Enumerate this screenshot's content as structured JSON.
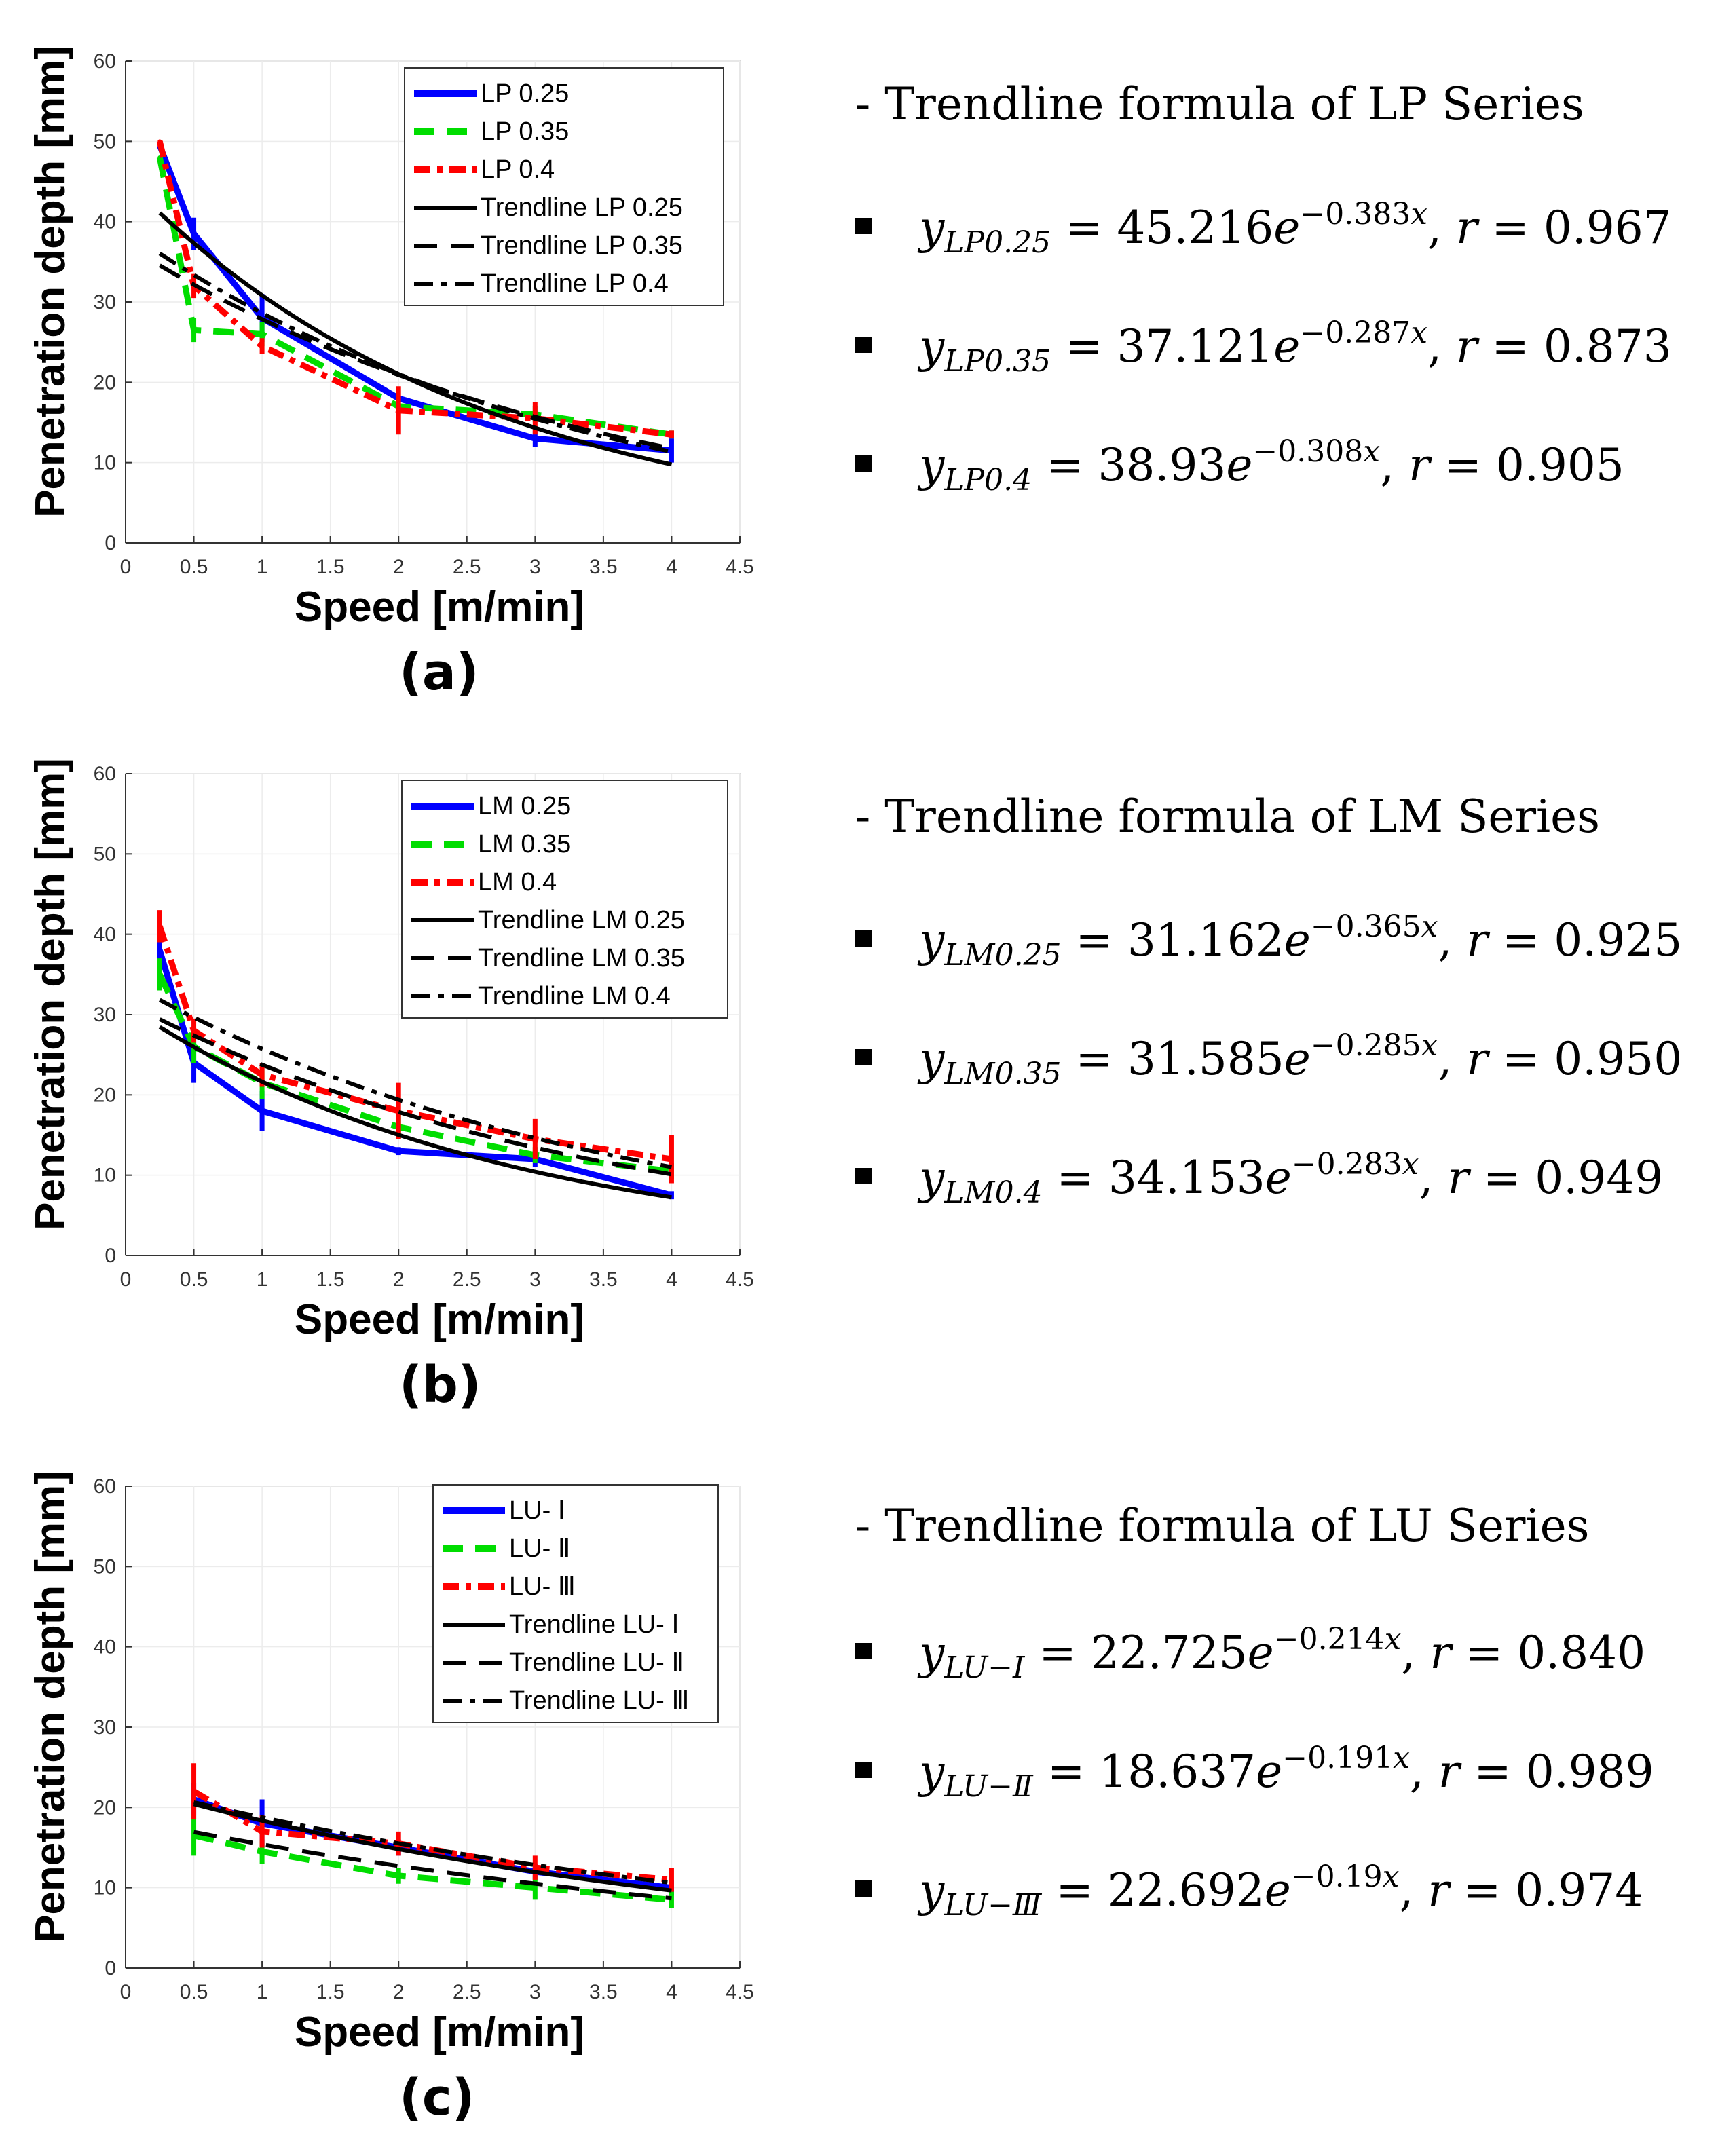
{
  "panels": [
    {
      "id": "a",
      "caption": "(a)",
      "heading": "- Trendline formula of LP Series",
      "formulas": [
        {
          "sub": "LP0.25",
          "coef": "45.216",
          "exp": "−0.383",
          "r": "0.967"
        },
        {
          "sub": "LP0.35",
          "coef": "37.121",
          "exp": "−0.287",
          "r": "0.873"
        },
        {
          "sub": "LP0.4",
          "coef": "38.93",
          "exp": "−0.308",
          "r": "0.905"
        }
      ]
    },
    {
      "id": "b",
      "caption": "(b)",
      "heading": "- Trendline formula of LM Series",
      "formulas": [
        {
          "sub": "LM0.25",
          "coef": "31.162",
          "exp": "−0.365",
          "r": "0.925"
        },
        {
          "sub": "LM0.35",
          "coef": "31.585",
          "exp": "−0.285",
          "r": "0.950"
        },
        {
          "sub": "LM0.4",
          "coef": "34.153",
          "exp": "−0.283",
          "r": "0.949"
        }
      ]
    },
    {
      "id": "c",
      "caption": "(c)",
      "heading": "- Trendline formula of LU Series",
      "formulas": [
        {
          "sub": "LU−Ⅰ",
          "coef": "22.725",
          "exp": "−0.214",
          "r": "0.840"
        },
        {
          "sub": "LU−Ⅱ",
          "coef": "18.637",
          "exp": "−0.191",
          "r": "0.989"
        },
        {
          "sub": "LU−Ⅲ",
          "coef": "22.692",
          "exp": "−0.19",
          "r": "0.974"
        }
      ]
    }
  ],
  "colors": {
    "blue": "#0000ff",
    "green": "#00dd00",
    "red": "#ff0000",
    "black": "#000000"
  },
  "chart_data": [
    {
      "type": "line",
      "title": "",
      "xlabel": "Speed [m/min]",
      "ylabel": "Penetration depth [mm]",
      "xlim": [
        0,
        4.5
      ],
      "ylim": [
        0,
        60
      ],
      "xticks": [
        "0",
        "0.5",
        "1",
        "1.5",
        "2",
        "2.5",
        "3",
        "3.5",
        "4",
        "4.5"
      ],
      "yticks": [
        "0",
        "10",
        "20",
        "30",
        "40",
        "50",
        "60"
      ],
      "legend_position": "top-right",
      "series": [
        {
          "name": "LP 0.25",
          "style": "measured",
          "color": "blue",
          "x": [
            0.25,
            0.5,
            1,
            2,
            3,
            4
          ],
          "y": [
            49.5,
            38.5,
            28,
            18,
            13,
            11.5
          ],
          "err": [
            0,
            2,
            3,
            0,
            1,
            1.5
          ]
        },
        {
          "name": "LP 0.35",
          "style": "measured",
          "color": "green",
          "x": [
            0.25,
            0.5,
            1,
            2,
            3,
            4
          ],
          "y": [
            48,
            26.5,
            26,
            17,
            16,
            13.5
          ],
          "err": [
            0,
            1.5,
            1.5,
            0,
            1,
            0.5
          ]
        },
        {
          "name": "LP 0.4",
          "style": "measured",
          "color": "red",
          "x": [
            0.25,
            0.5,
            1,
            2,
            3,
            4
          ],
          "y": [
            50,
            32,
            24.5,
            16.5,
            15.5,
            13.5
          ],
          "err": [
            0,
            1.5,
            1,
            3,
            2,
            0.5
          ]
        },
        {
          "name": "Trendline LP 0.25",
          "style": "solid",
          "color": "black",
          "a": 45.216,
          "b": -0.383
        },
        {
          "name": "Trendline LP 0.35",
          "style": "dashed",
          "color": "black",
          "a": 37.121,
          "b": -0.287
        },
        {
          "name": "Trendline LP 0.4",
          "style": "dashdot",
          "color": "black",
          "a": 38.93,
          "b": -0.308
        }
      ]
    },
    {
      "type": "line",
      "title": "",
      "xlabel": "Speed [m/min]",
      "ylabel": "Penetration depth [mm]",
      "xlim": [
        0,
        4.5
      ],
      "ylim": [
        0,
        60
      ],
      "xticks": [
        "0",
        "0.5",
        "1",
        "1.5",
        "2",
        "2.5",
        "3",
        "3.5",
        "4",
        "4.5"
      ],
      "yticks": [
        "0",
        "10",
        "20",
        "30",
        "40",
        "50",
        "60"
      ],
      "legend_position": "top-right",
      "series": [
        {
          "name": "LM 0.25",
          "style": "measured",
          "color": "blue",
          "x": [
            0.25,
            0.5,
            1,
            2,
            3,
            4
          ],
          "y": [
            38,
            24,
            18,
            13,
            12,
            7.5
          ],
          "err": [
            2,
            2.5,
            2.5,
            0.5,
            1,
            0.5
          ]
        },
        {
          "name": "LM 0.35",
          "style": "measured",
          "color": "green",
          "x": [
            0.25,
            0.5,
            1,
            2,
            3,
            4
          ],
          "y": [
            35,
            26,
            21.5,
            16,
            12.5,
            10.5
          ],
          "err": [
            2,
            2,
            2,
            1.5,
            1,
            1
          ]
        },
        {
          "name": "LM 0.4",
          "style": "measured",
          "color": "red",
          "x": [
            0.25,
            0.5,
            1,
            2,
            3,
            4
          ],
          "y": [
            41,
            28,
            22.5,
            18,
            14.5,
            12
          ],
          "err": [
            2,
            1.5,
            1.5,
            3.5,
            2.5,
            3
          ]
        },
        {
          "name": "Trendline LM 0.25",
          "style": "solid",
          "color": "black",
          "a": 31.162,
          "b": -0.365
        },
        {
          "name": "Trendline LM 0.35",
          "style": "dashed",
          "color": "black",
          "a": 31.585,
          "b": -0.285
        },
        {
          "name": "Trendline LM 0.4",
          "style": "dashdot",
          "color": "black",
          "a": 34.153,
          "b": -0.283
        }
      ]
    },
    {
      "type": "line",
      "title": "",
      "xlabel": "Speed [m/min]",
      "ylabel": "Penetration depth [mm]",
      "xlim": [
        0,
        4.5
      ],
      "ylim": [
        0,
        60
      ],
      "xticks": [
        "0",
        "0.5",
        "1",
        "1.5",
        "2",
        "2.5",
        "3",
        "3.5",
        "4",
        "4.5"
      ],
      "yticks": [
        "0",
        "10",
        "20",
        "30",
        "40",
        "50",
        "60"
      ],
      "legend_position": "top-right",
      "series": [
        {
          "name": "LU- Ⅰ",
          "style": "measured",
          "color": "blue",
          "x": [
            0.5,
            1,
            2,
            3,
            4
          ],
          "y": [
            21,
            18,
            15,
            12,
            10
          ],
          "err": [
            2,
            3,
            1,
            1,
            1
          ]
        },
        {
          "name": "LU- Ⅱ",
          "style": "measured",
          "color": "green",
          "x": [
            0.5,
            1,
            2,
            3,
            4
          ],
          "y": [
            16.5,
            14.5,
            11.5,
            10,
            8.5
          ],
          "err": [
            2.5,
            1.5,
            1,
            1.5,
            1
          ]
        },
        {
          "name": "LU- Ⅲ",
          "style": "measured",
          "color": "red",
          "x": [
            0.5,
            1,
            2,
            3,
            4
          ],
          "y": [
            22,
            17,
            15.5,
            12.5,
            11
          ],
          "err": [
            3.5,
            2,
            1.5,
            1.5,
            1.5
          ]
        },
        {
          "name": "Trendline LU- Ⅰ",
          "style": "solid",
          "color": "black",
          "a": 22.725,
          "b": -0.214
        },
        {
          "name": "Trendline LU- Ⅱ",
          "style": "dashed",
          "color": "black",
          "a": 18.637,
          "b": -0.191
        },
        {
          "name": "Trendline LU- Ⅲ",
          "style": "dashdot",
          "color": "black",
          "a": 22.692,
          "b": -0.19
        }
      ]
    }
  ]
}
